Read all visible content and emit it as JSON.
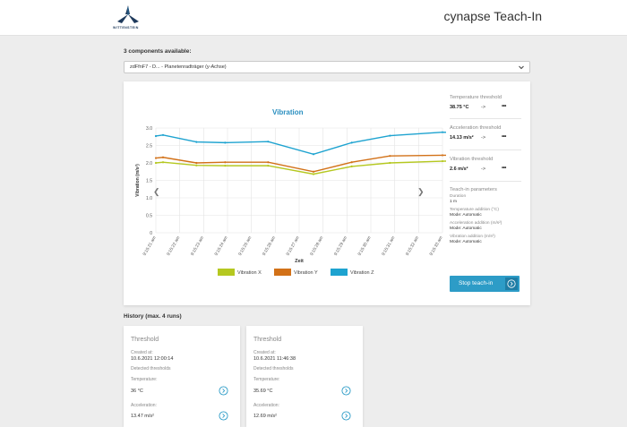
{
  "header": {
    "brand": "WITTENSTEIN",
    "title": "cynapse Teach-In"
  },
  "components": {
    "label": "3 components available:",
    "selected": "zdFfnF7 - D... - Planetenradträger (y-Achse)"
  },
  "chart_data": {
    "type": "line",
    "title": "Vibration",
    "xlabel": "Zeit",
    "ylabel": "Vibration (m/s²)",
    "ylim": [
      0,
      3.0
    ],
    "yticks": [
      "0",
      "0.5",
      "1.0",
      "1.5",
      "2.0",
      "2.5",
      "3.0"
    ],
    "categories": [
      "9:15:21 am",
      "9:15:22 am",
      "9:15:23 am",
      "9:15:24 am",
      "9:15:25 am",
      "9:15:26 am",
      "9:15:27 am",
      "9:15:28 am",
      "9:15:29 am",
      "9:15:30 am",
      "9:15:31 am",
      "9:15:32 am",
      "9:15:33 am"
    ],
    "series": [
      {
        "name": "Vibration X",
        "color": "#b5c820",
        "x": [
          0,
          0.3,
          1.7,
          2.9,
          4.7,
          6.6,
          8.2,
          9.8,
          12.0,
          13.0
        ],
        "values": [
          2.0,
          2.02,
          1.93,
          1.92,
          1.92,
          1.68,
          1.9,
          2.0,
          2.05,
          2.06
        ]
      },
      {
        "name": "Vibration Y",
        "color": "#d27118",
        "x": [
          0,
          0.3,
          1.7,
          2.9,
          4.7,
          6.6,
          8.2,
          9.8,
          12.0,
          13.0
        ],
        "values": [
          2.14,
          2.16,
          2.0,
          2.02,
          2.02,
          1.75,
          2.02,
          2.2,
          2.22,
          2.22
        ]
      },
      {
        "name": "Vibration Z",
        "color": "#1ea3d0",
        "x": [
          0,
          0.3,
          1.7,
          2.9,
          4.7,
          6.6,
          8.2,
          9.8,
          12.0,
          13.0
        ],
        "values": [
          2.77,
          2.8,
          2.6,
          2.58,
          2.61,
          2.25,
          2.58,
          2.78,
          2.88,
          2.85
        ]
      }
    ],
    "legend": "bottom",
    "grid": true
  },
  "thresholds": {
    "temperature": {
      "label": "Temperature threshold",
      "value": "38.75 °C",
      "arrow": "->",
      "dots": "•••"
    },
    "acceleration": {
      "label": "Acceleration threshold",
      "value": "14.13 m/s²",
      "arrow": "->",
      "dots": "•••"
    },
    "vibration": {
      "label": "Vibration threshold",
      "value": "2.6 m/s²",
      "arrow": "->",
      "dots": "•••"
    }
  },
  "teach_in": {
    "title": "Teach-in parameters",
    "duration_label": "Duration",
    "duration_value": "1 m",
    "temp_add_label": "Temperature addition (°C)",
    "temp_add_value": "Mode: Automatic",
    "acc_add_label": "Acceleration addition (m/s²)",
    "acc_add_value": "Mode: Automatic",
    "vib_add_label": "Vibration addition (m/s²)",
    "vib_add_value": "Mode: Automatic",
    "stop_button": "Stop teach-in"
  },
  "history": {
    "label": "History (max. 4 runs)",
    "cards": [
      {
        "title": "Threshold",
        "created_label": "Created at:",
        "created": "10.6.2021 12:00:14",
        "detected": "Detected thresholds",
        "temp_label": "Temperature:",
        "temp": "36 °C",
        "acc_label": "Acceleration:",
        "acc": "13.47 m/s²"
      },
      {
        "title": "Threshold",
        "created_label": "Created at:",
        "created": "10.6.2021 11:46:38",
        "detected": "Detected thresholds",
        "temp_label": "Temperature:",
        "temp": "35.69 °C",
        "acc_label": "Acceleration:",
        "acc": "12.69 m/s²"
      }
    ]
  }
}
